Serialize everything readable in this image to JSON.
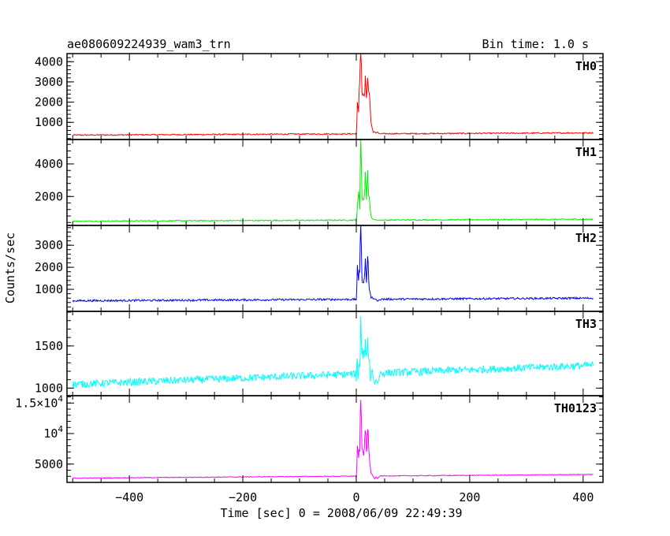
{
  "header": {
    "title": "ae080609224939_wam3_trn",
    "bin_time": "Bin time: 1.0 s"
  },
  "colors": {
    "TH0": "#ff0000",
    "TH1": "#00ee00",
    "TH2": "#0000ee",
    "TH3": "#00ffff",
    "TH0123": "#ff00ff"
  },
  "chart_data": {
    "type": "line",
    "title": "ae080609224939_wam3_trn",
    "xlabel": "Time [sec] 0 = 2008/06/09 22:49:39",
    "ylabel": "Counts/sec",
    "xlim": [
      -510,
      435
    ],
    "x_ticks": [
      -400,
      -200,
      0,
      200,
      400
    ],
    "x_tick_labels": [
      "−400",
      "−200",
      "0",
      "200",
      "400"
    ],
    "grid": false,
    "panels": [
      {
        "name": "TH0",
        "ylim": [
          150,
          4400
        ],
        "y_ticks": [
          1000,
          2000,
          3000,
          4000
        ],
        "y_tick_labels": [
          "1000",
          "2000",
          "3000",
          "4000"
        ],
        "baseline_start": 370,
        "baseline_end": 480,
        "noise": 30,
        "trigger": [
          [
            0,
            380
          ],
          [
            2,
            2000
          ],
          [
            4,
            1500
          ],
          [
            6,
            3000
          ],
          [
            8,
            4400
          ],
          [
            10,
            2500
          ],
          [
            12,
            2400
          ],
          [
            14,
            2300
          ],
          [
            16,
            3300
          ],
          [
            18,
            2200
          ],
          [
            20,
            3200
          ],
          [
            22,
            2500
          ],
          [
            24,
            2000
          ],
          [
            26,
            1000
          ],
          [
            30,
            500
          ],
          [
            35,
            470
          ],
          [
            40,
            450
          ]
        ]
      },
      {
        "name": "TH1",
        "ylim": [
          220,
          5500
        ],
        "y_ticks": [
          2000,
          4000
        ],
        "y_tick_labels": [
          "2000",
          "4000"
        ],
        "baseline_start": 480,
        "baseline_end": 600,
        "noise": 35,
        "trigger": [
          [
            0,
            500
          ],
          [
            2,
            1400
          ],
          [
            4,
            2300
          ],
          [
            6,
            1200
          ],
          [
            8,
            5500
          ],
          [
            10,
            2000
          ],
          [
            12,
            1800
          ],
          [
            14,
            2000
          ],
          [
            16,
            3500
          ],
          [
            18,
            1800
          ],
          [
            20,
            3600
          ],
          [
            22,
            2000
          ],
          [
            24,
            1500
          ],
          [
            26,
            800
          ],
          [
            30,
            600
          ],
          [
            35,
            560
          ],
          [
            40,
            540
          ]
        ]
      },
      {
        "name": "TH2",
        "ylim": [
          0,
          3900
        ],
        "y_ticks": [
          1000,
          2000,
          3000
        ],
        "y_tick_labels": [
          "1000",
          "2000",
          "3000"
        ],
        "baseline_start": 480,
        "baseline_end": 600,
        "noise": 45,
        "trigger": [
          [
            0,
            500
          ],
          [
            2,
            2100
          ],
          [
            4,
            1400
          ],
          [
            6,
            1800
          ],
          [
            8,
            3900
          ],
          [
            10,
            1500
          ],
          [
            12,
            1300
          ],
          [
            14,
            1500
          ],
          [
            16,
            2400
          ],
          [
            18,
            1300
          ],
          [
            20,
            2500
          ],
          [
            22,
            1400
          ],
          [
            24,
            900
          ],
          [
            26,
            600
          ],
          [
            30,
            560
          ],
          [
            35,
            540
          ],
          [
            40,
            520
          ]
        ]
      },
      {
        "name": "TH3",
        "ylim": [
          910,
          1910
        ],
        "y_ticks": [
          1000,
          1500
        ],
        "y_tick_labels": [
          "1000",
          "1500"
        ],
        "baseline_start": 1045,
        "baseline_end": 1270,
        "noise": 45,
        "trigger": [
          [
            0,
            1080
          ],
          [
            2,
            1350
          ],
          [
            4,
            1200
          ],
          [
            6,
            1250
          ],
          [
            8,
            1850
          ],
          [
            10,
            1400
          ],
          [
            12,
            1350
          ],
          [
            14,
            1450
          ],
          [
            16,
            1580
          ],
          [
            18,
            1380
          ],
          [
            20,
            1600
          ],
          [
            22,
            1350
          ],
          [
            24,
            1250
          ],
          [
            26,
            1150
          ],
          [
            30,
            1120
          ],
          [
            35,
            1100
          ],
          [
            40,
            1100
          ]
        ]
      },
      {
        "name": "TH0123",
        "ylim": [
          2000,
          16200
        ],
        "y_ticks": [
          5000,
          10000,
          15000
        ],
        "y_tick_labels": [
          "5000",
          "10^4",
          "1.5×10^4"
        ],
        "baseline_start": 2700,
        "baseline_end": 3300,
        "noise": 60,
        "trigger": [
          [
            0,
            2700
          ],
          [
            2,
            8000
          ],
          [
            4,
            6000
          ],
          [
            6,
            7000
          ],
          [
            8,
            15500
          ],
          [
            10,
            7500
          ],
          [
            12,
            7000
          ],
          [
            14,
            7500
          ],
          [
            16,
            10500
          ],
          [
            18,
            7000
          ],
          [
            20,
            10700
          ],
          [
            22,
            7500
          ],
          [
            24,
            5000
          ],
          [
            26,
            3500
          ],
          [
            30,
            3000
          ],
          [
            35,
            2900
          ],
          [
            40,
            2900
          ]
        ]
      }
    ]
  }
}
